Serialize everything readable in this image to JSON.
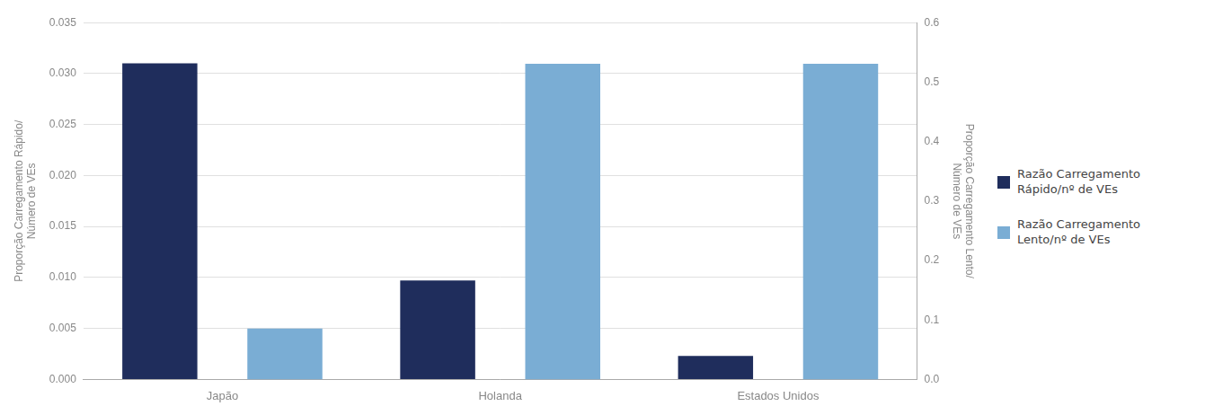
{
  "chart_data": {
    "type": "bar",
    "categories": [
      "Japão",
      "Holanda",
      "Estados Unidos"
    ],
    "series": [
      {
        "name": "Razão Carregamento\nRápido/nº de VEs",
        "color": "#1f2d5c",
        "values": [
          0.031,
          0.0097,
          0.0023
        ],
        "axis": "y"
      },
      {
        "name": "Razão Carregamento\nLento/nº de VEs",
        "color": "#7aadd4",
        "values": [
          0.0857,
          0.531,
          0.531
        ],
        "axis": "y2"
      }
    ],
    "ylabel": "Proporção Carregamento Rápido/\nNúmero de VEs",
    "y2label": "Proporção Carregamento Lento/\nNúmero de VEs",
    "ylim": [
      0,
      0.035
    ],
    "yticks": [
      {
        "value": 0,
        "label": "0.000"
      },
      0.005,
      {
        "value": 0.01,
        "label": "0.010"
      },
      0.015,
      {
        "value": 0.02,
        "label": "0.020"
      },
      0.025,
      {
        "value": 0.03,
        "label": "0.030"
      },
      0.035
    ],
    "y2lim": [
      0.0,
      0.6
    ],
    "y2ticks": [
      {
        "value": 0,
        "label": "0.0"
      },
      0.1,
      0.2,
      0.3,
      0.4,
      0.5,
      0.6
    ],
    "grid": true,
    "legend": "right"
  }
}
